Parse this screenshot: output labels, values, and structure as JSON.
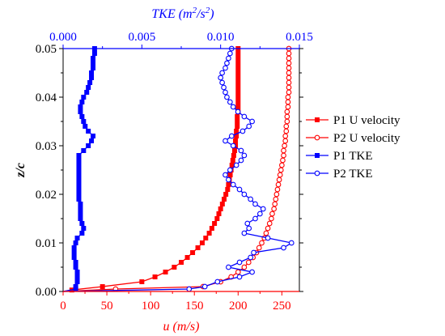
{
  "colors": {
    "red": "#ff0000",
    "blue": "#0000ff",
    "black": "#000000"
  },
  "chart_data": {
    "type": "line",
    "bottom_axis": {
      "label_prefix": "u",
      "label_suffix": " (m/s)",
      "ticks": [
        "0",
        "50",
        "100",
        "150",
        "200",
        "250"
      ],
      "lim": [
        0,
        270
      ]
    },
    "top_axis": {
      "label_prefix": "TKE",
      "label_units": " (m",
      "label_units_sup": "2",
      "label_units_mid": "/s",
      "label_units_sup2": "2",
      "label_units_end": ")",
      "ticks": [
        "0.000",
        "0.005",
        "0.010",
        "0.015"
      ],
      "lim": [
        0,
        0.015
      ]
    },
    "y_axis": {
      "label": "z/c",
      "ticks": [
        "0.00",
        "0.01",
        "0.02",
        "0.03",
        "0.04",
        "0.05"
      ],
      "lim": [
        0,
        0.05
      ]
    },
    "legend": {
      "placement": "right"
    },
    "series": [
      {
        "name": "P1 U velocity",
        "axis": "bottom",
        "color": "#ff0000",
        "marker": "filled-square",
        "points": [
          [
            0,
            0
          ],
          [
            10,
            0.0003
          ],
          [
            45,
            0.001
          ],
          [
            90,
            0.002
          ],
          [
            105,
            0.003
          ],
          [
            117,
            0.004
          ],
          [
            127,
            0.005
          ],
          [
            135,
            0.006
          ],
          [
            142,
            0.007
          ],
          [
            148,
            0.008
          ],
          [
            154,
            0.009
          ],
          [
            159,
            0.01
          ],
          [
            163,
            0.011
          ],
          [
            167,
            0.012
          ],
          [
            170,
            0.013
          ],
          [
            173,
            0.014
          ],
          [
            176,
            0.015
          ],
          [
            178,
            0.016
          ],
          [
            180,
            0.017
          ],
          [
            182,
            0.018
          ],
          [
            184,
            0.019
          ],
          [
            186,
            0.02
          ],
          [
            188,
            0.021
          ],
          [
            189,
            0.022
          ],
          [
            190,
            0.023
          ],
          [
            191,
            0.024
          ],
          [
            192,
            0.025
          ],
          [
            193,
            0.026
          ],
          [
            194,
            0.027
          ],
          [
            195,
            0.028
          ],
          [
            196,
            0.029
          ],
          [
            197,
            0.03
          ],
          [
            197,
            0.031
          ],
          [
            198,
            0.032
          ],
          [
            198,
            0.033
          ],
          [
            199,
            0.034
          ],
          [
            199,
            0.035
          ],
          [
            199,
            0.036
          ],
          [
            200,
            0.037
          ],
          [
            200,
            0.038
          ],
          [
            200,
            0.039
          ],
          [
            200,
            0.04
          ],
          [
            200,
            0.041
          ],
          [
            200,
            0.042
          ],
          [
            200,
            0.043
          ],
          [
            200,
            0.044
          ],
          [
            200,
            0.045
          ],
          [
            200,
            0.046
          ],
          [
            200,
            0.047
          ],
          [
            200,
            0.048
          ],
          [
            200,
            0.049
          ],
          [
            200,
            0.05
          ]
        ]
      },
      {
        "name": "P2 U velocity",
        "axis": "bottom",
        "color": "#ff0000",
        "marker": "open-circle",
        "points": [
          [
            0,
            0
          ],
          [
            60,
            0.0005
          ],
          [
            160,
            0.001
          ],
          [
            180,
            0.002
          ],
          [
            192,
            0.003
          ],
          [
            200,
            0.004
          ],
          [
            207,
            0.005
          ],
          [
            212,
            0.006
          ],
          [
            217,
            0.007
          ],
          [
            221,
            0.008
          ],
          [
            224,
            0.009
          ],
          [
            227,
            0.01
          ],
          [
            230,
            0.011
          ],
          [
            232,
            0.012
          ],
          [
            234,
            0.013
          ],
          [
            236,
            0.014
          ],
          [
            238,
            0.015
          ],
          [
            239,
            0.016
          ],
          [
            241,
            0.017
          ],
          [
            242,
            0.018
          ],
          [
            243,
            0.019
          ],
          [
            244,
            0.02
          ],
          [
            245,
            0.021
          ],
          [
            246,
            0.022
          ],
          [
            247,
            0.023
          ],
          [
            248,
            0.024
          ],
          [
            249,
            0.025
          ],
          [
            250,
            0.026
          ],
          [
            251,
            0.027
          ],
          [
            252,
            0.028
          ],
          [
            252,
            0.029
          ],
          [
            253,
            0.03
          ],
          [
            254,
            0.031
          ],
          [
            254,
            0.032
          ],
          [
            255,
            0.033
          ],
          [
            255,
            0.034
          ],
          [
            256,
            0.035
          ],
          [
            256,
            0.036
          ],
          [
            256,
            0.037
          ],
          [
            257,
            0.038
          ],
          [
            257,
            0.039
          ],
          [
            257,
            0.04
          ],
          [
            258,
            0.041
          ],
          [
            258,
            0.042
          ],
          [
            258,
            0.043
          ],
          [
            258,
            0.044
          ],
          [
            258,
            0.045
          ],
          [
            258,
            0.046
          ],
          [
            258,
            0.047
          ],
          [
            258,
            0.048
          ],
          [
            258,
            0.049
          ],
          [
            258,
            0.05
          ]
        ]
      },
      {
        "name": "P1 TKE",
        "axis": "top",
        "color": "#0000ff",
        "marker": "filled-square",
        "points": [
          [
            0.0,
            0
          ],
          [
            0.0008,
            0.0005
          ],
          [
            0.0008,
            0.001
          ],
          [
            0.0009,
            0.002
          ],
          [
            0.0009,
            0.003
          ],
          [
            0.0009,
            0.004
          ],
          [
            0.0008,
            0.005
          ],
          [
            0.0008,
            0.006
          ],
          [
            0.0007,
            0.007
          ],
          [
            0.0007,
            0.008
          ],
          [
            0.0007,
            0.009
          ],
          [
            0.0008,
            0.01
          ],
          [
            0.0009,
            0.011
          ],
          [
            0.0012,
            0.012
          ],
          [
            0.0013,
            0.013
          ],
          [
            0.0012,
            0.014
          ],
          [
            0.0011,
            0.015
          ],
          [
            0.0011,
            0.016
          ],
          [
            0.0011,
            0.017
          ],
          [
            0.0011,
            0.018
          ],
          [
            0.001,
            0.019
          ],
          [
            0.001,
            0.02
          ],
          [
            0.001,
            0.021
          ],
          [
            0.001,
            0.022
          ],
          [
            0.001,
            0.023
          ],
          [
            0.001,
            0.024
          ],
          [
            0.001,
            0.025
          ],
          [
            0.001,
            0.026
          ],
          [
            0.001,
            0.027
          ],
          [
            0.001,
            0.028
          ],
          [
            0.0013,
            0.029
          ],
          [
            0.0016,
            0.03
          ],
          [
            0.0018,
            0.031
          ],
          [
            0.0019,
            0.032
          ],
          [
            0.0016,
            0.033
          ],
          [
            0.0014,
            0.034
          ],
          [
            0.0013,
            0.035
          ],
          [
            0.0012,
            0.036
          ],
          [
            0.0011,
            0.037
          ],
          [
            0.0011,
            0.038
          ],
          [
            0.0012,
            0.039
          ],
          [
            0.0013,
            0.04
          ],
          [
            0.0015,
            0.041
          ],
          [
            0.0016,
            0.042
          ],
          [
            0.0017,
            0.043
          ],
          [
            0.0018,
            0.044
          ],
          [
            0.0018,
            0.045
          ],
          [
            0.0019,
            0.046
          ],
          [
            0.0019,
            0.047
          ],
          [
            0.0019,
            0.048
          ],
          [
            0.002,
            0.049
          ],
          [
            0.002,
            0.05
          ]
        ]
      },
      {
        "name": "P2 TKE",
        "axis": "top",
        "color": "#0000ff",
        "marker": "open-circle",
        "points": [
          [
            0.0,
            0
          ],
          [
            0.008,
            0.0005
          ],
          [
            0.009,
            0.001
          ],
          [
            0.0098,
            0.002
          ],
          [
            0.0112,
            0.003
          ],
          [
            0.012,
            0.004
          ],
          [
            0.0105,
            0.005
          ],
          [
            0.0112,
            0.006
          ],
          [
            0.0119,
            0.007
          ],
          [
            0.0121,
            0.008
          ],
          [
            0.014,
            0.009
          ],
          [
            0.0145,
            0.01
          ],
          [
            0.013,
            0.011
          ],
          [
            0.0115,
            0.012
          ],
          [
            0.0118,
            0.013
          ],
          [
            0.0117,
            0.014
          ],
          [
            0.0122,
            0.015
          ],
          [
            0.0125,
            0.016
          ],
          [
            0.0127,
            0.017
          ],
          [
            0.0122,
            0.018
          ],
          [
            0.0119,
            0.019
          ],
          [
            0.0115,
            0.02
          ],
          [
            0.0112,
            0.021
          ],
          [
            0.0108,
            0.022
          ],
          [
            0.0105,
            0.023
          ],
          [
            0.0103,
            0.024
          ],
          [
            0.0106,
            0.025
          ],
          [
            0.011,
            0.026
          ],
          [
            0.0113,
            0.027
          ],
          [
            0.0115,
            0.028
          ],
          [
            0.0113,
            0.029
          ],
          [
            0.0108,
            0.03
          ],
          [
            0.0103,
            0.031
          ],
          [
            0.0107,
            0.032
          ],
          [
            0.0114,
            0.033
          ],
          [
            0.0118,
            0.034
          ],
          [
            0.012,
            0.035
          ],
          [
            0.0115,
            0.036
          ],
          [
            0.0111,
            0.037
          ],
          [
            0.0108,
            0.038
          ],
          [
            0.0106,
            0.039
          ],
          [
            0.0104,
            0.04
          ],
          [
            0.0103,
            0.041
          ],
          [
            0.0102,
            0.042
          ],
          [
            0.0101,
            0.043
          ],
          [
            0.01,
            0.044
          ],
          [
            0.0101,
            0.045
          ],
          [
            0.0103,
            0.046
          ],
          [
            0.0104,
            0.047
          ],
          [
            0.0105,
            0.048
          ],
          [
            0.0106,
            0.049
          ],
          [
            0.0107,
            0.05
          ]
        ]
      }
    ]
  }
}
